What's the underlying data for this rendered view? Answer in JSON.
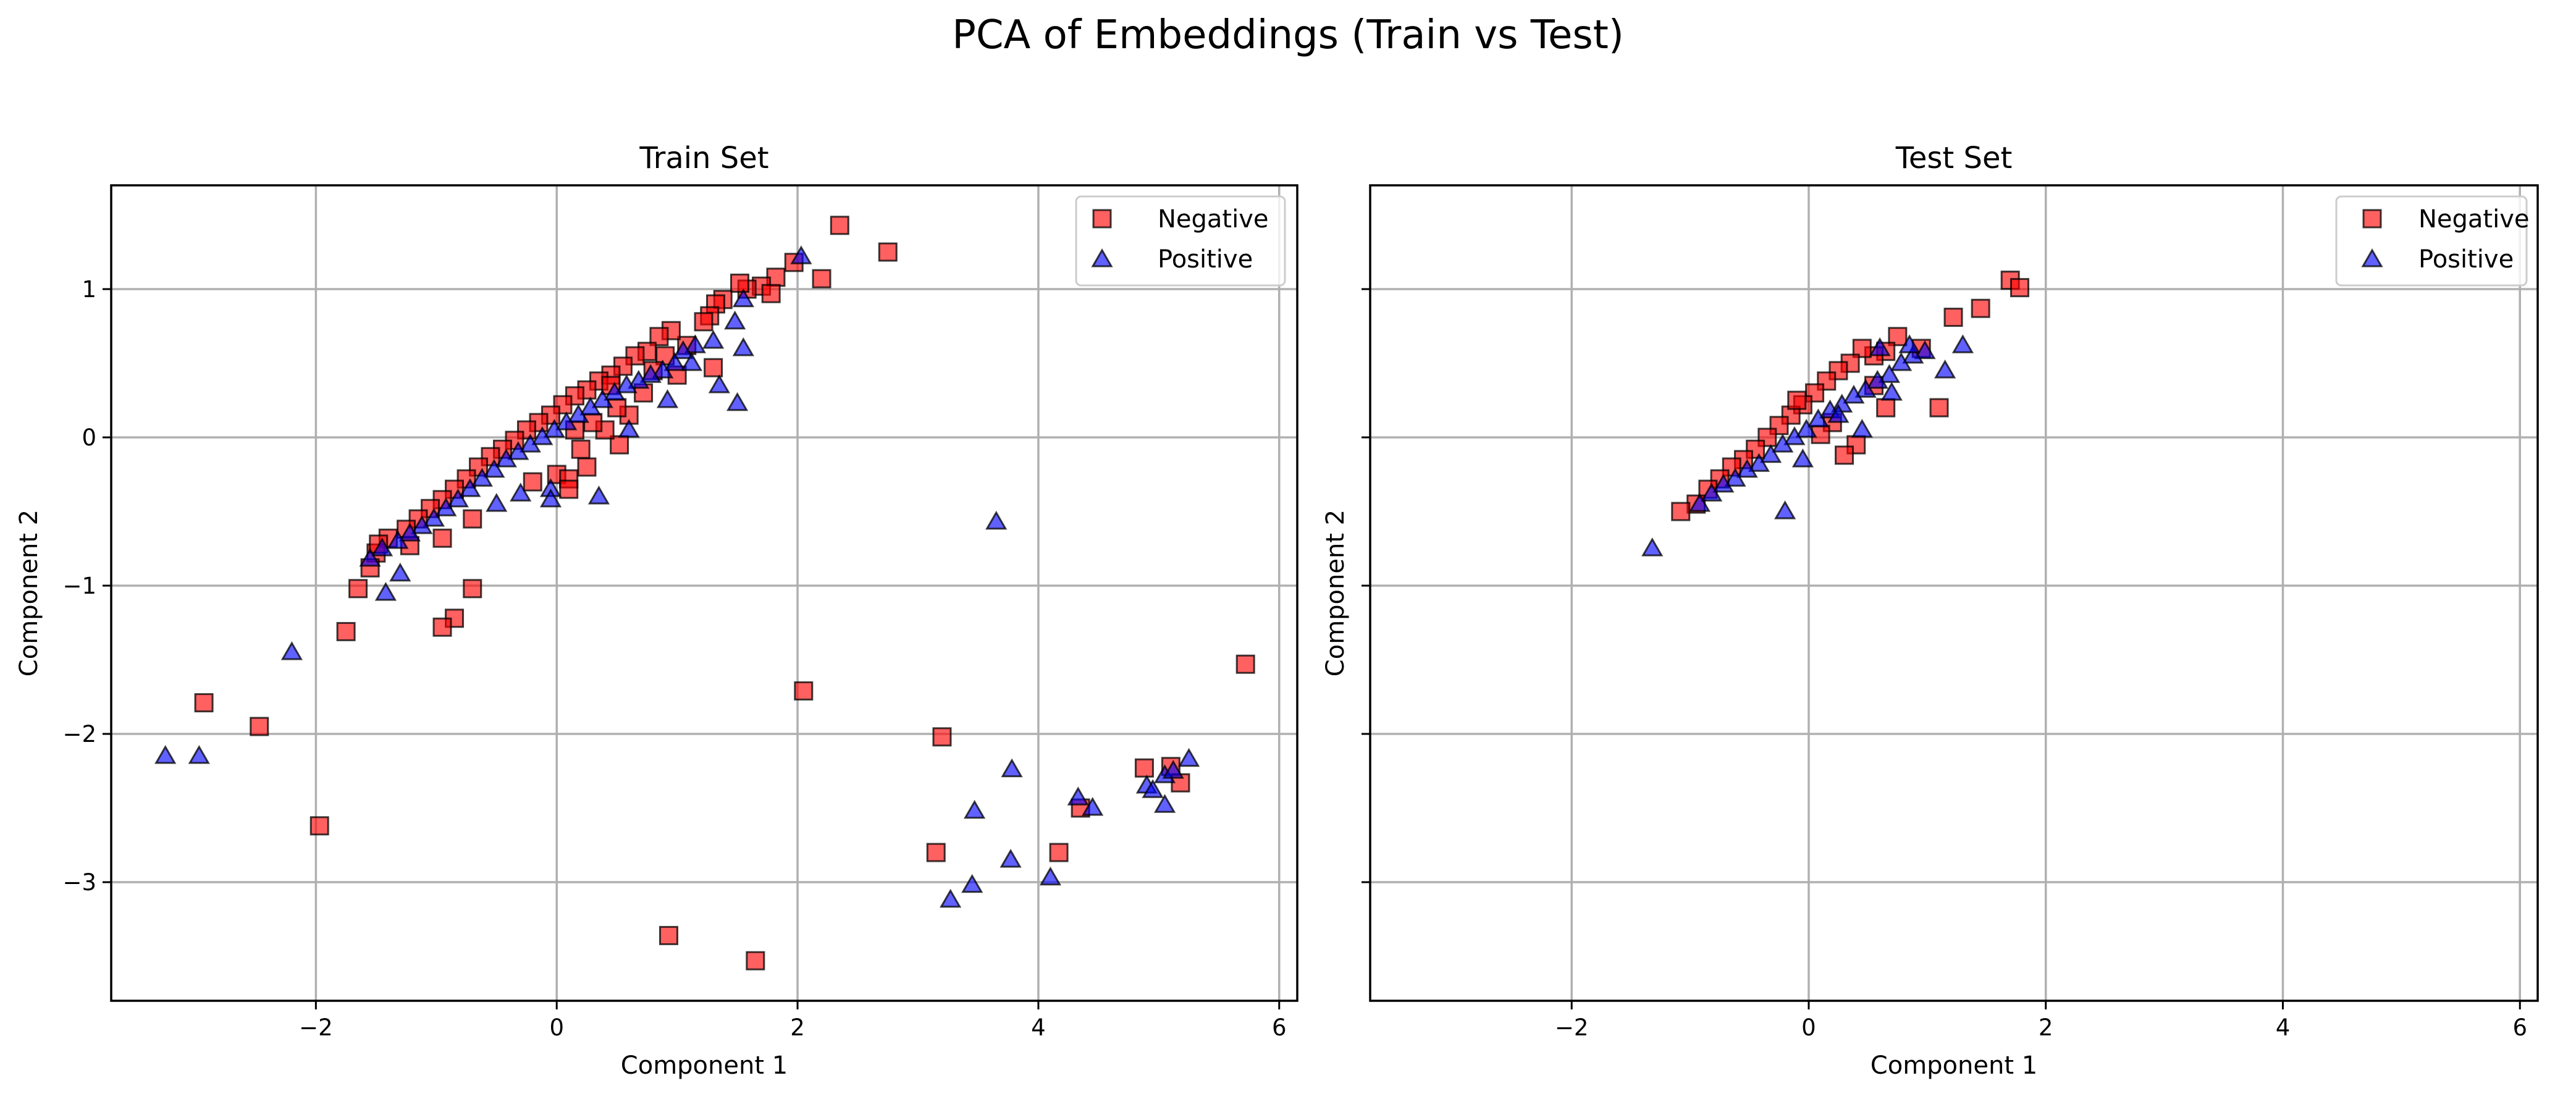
{
  "chart_data": {
    "title": "PCA of Embeddings (Train vs Test)",
    "type": "scatter",
    "sharey": true,
    "colors": {
      "Negative": "#ff0000",
      "Positive": "#0000ff"
    },
    "markers": {
      "Negative": "square",
      "Positive": "triangle"
    },
    "panels": [
      {
        "id": "train",
        "title": "Train Set",
        "xlabel": "Component 1",
        "ylabel": "Component 2",
        "xlim": [
          -3.7,
          6.15
        ],
        "ylim": [
          -3.8,
          1.7
        ],
        "xticks": [
          -2,
          0,
          2,
          4,
          6
        ],
        "yticks": [
          -3,
          -2,
          -1,
          0,
          1
        ],
        "tick_labels_x": [
          "−2",
          "0",
          "2",
          "4",
          "6"
        ],
        "tick_labels_y": [
          "−3",
          "−2",
          "−1",
          "0",
          "1"
        ],
        "grid": true,
        "legend": {
          "position": "top-right",
          "entries": [
            "Negative",
            "Positive"
          ]
        },
        "series": [
          {
            "name": "Negative",
            "points": [
              [
                2.35,
                1.43
              ],
              [
                2.75,
                1.25
              ],
              [
                2.2,
                1.07
              ],
              [
                1.97,
                1.18
              ],
              [
                1.82,
                1.08
              ],
              [
                1.7,
                1.02
              ],
              [
                1.58,
                1.0
              ],
              [
                1.78,
                0.97
              ],
              [
                1.52,
                1.04
              ],
              [
                1.38,
                0.93
              ],
              [
                1.32,
                0.9
              ],
              [
                1.27,
                0.82
              ],
              [
                1.22,
                0.78
              ],
              [
                1.08,
                0.62
              ],
              [
                0.95,
                0.72
              ],
              [
                0.85,
                0.68
              ],
              [
                0.9,
                0.55
              ],
              [
                1.3,
                0.47
              ],
              [
                0.75,
                0.58
              ],
              [
                0.65,
                0.55
              ],
              [
                0.55,
                0.48
              ],
              [
                0.45,
                0.42
              ],
              [
                0.35,
                0.38
              ],
              [
                0.25,
                0.32
              ],
              [
                0.15,
                0.28
              ],
              [
                0.05,
                0.22
              ],
              [
                -0.05,
                0.15
              ],
              [
                -0.15,
                0.1
              ],
              [
                -0.25,
                0.05
              ],
              [
                -0.35,
                -0.02
              ],
              [
                -0.45,
                -0.08
              ],
              [
                -0.55,
                -0.13
              ],
              [
                -0.65,
                -0.2
              ],
              [
                -0.75,
                -0.28
              ],
              [
                -0.85,
                -0.35
              ],
              [
                -0.95,
                -0.42
              ],
              [
                -1.05,
                -0.48
              ],
              [
                -1.15,
                -0.55
              ],
              [
                -1.25,
                -0.62
              ],
              [
                -1.4,
                -0.68
              ],
              [
                -1.5,
                -0.78
              ],
              [
                -1.55,
                -0.88
              ],
              [
                -1.65,
                -1.02
              ],
              [
                -1.48,
                -0.72
              ],
              [
                -1.22,
                -0.73
              ],
              [
                -0.95,
                -0.68
              ],
              [
                -0.7,
                -0.55
              ],
              [
                -0.7,
                -1.02
              ],
              [
                -0.85,
                -1.22
              ],
              [
                -0.95,
                -1.28
              ],
              [
                -1.75,
                -1.31
              ],
              [
                -2.93,
                -1.79
              ],
              [
                -2.47,
                -1.95
              ],
              [
                -1.97,
                -2.62
              ],
              [
                0.0,
                -0.25
              ],
              [
                0.1,
                -0.28
              ],
              [
                0.1,
                -0.35
              ],
              [
                0.25,
                -0.2
              ],
              [
                0.52,
                -0.05
              ],
              [
                0.6,
                0.15
              ],
              [
                0.4,
                0.05
              ],
              [
                0.2,
                -0.08
              ],
              [
                0.72,
                0.3
              ],
              [
                1.0,
                0.42
              ],
              [
                0.3,
                0.1
              ],
              [
                0.5,
                0.2
              ],
              [
                0.8,
                0.45
              ],
              [
                -0.2,
                -0.3
              ],
              [
                0.45,
                0.35
              ],
              [
                0.15,
                0.05
              ],
              [
                5.72,
                -1.53
              ],
              [
                2.05,
                -1.71
              ],
              [
                3.2,
                -2.02
              ],
              [
                3.15,
                -2.8
              ],
              [
                4.17,
                -2.8
              ],
              [
                4.35,
                -2.5
              ],
              [
                4.88,
                -2.23
              ],
              [
                5.1,
                -2.22
              ],
              [
                5.18,
                -2.33
              ],
              [
                0.93,
                -3.36
              ],
              [
                1.65,
                -3.53
              ]
            ]
          },
          {
            "name": "Positive",
            "points": [
              [
                2.03,
                1.22
              ],
              [
                1.55,
                0.93
              ],
              [
                1.48,
                0.78
              ],
              [
                1.55,
                0.6
              ],
              [
                1.3,
                0.65
              ],
              [
                1.15,
                0.62
              ],
              [
                1.05,
                0.58
              ],
              [
                0.98,
                0.5
              ],
              [
                0.88,
                0.45
              ],
              [
                0.78,
                0.42
              ],
              [
                0.68,
                0.38
              ],
              [
                0.58,
                0.35
              ],
              [
                0.48,
                0.3
              ],
              [
                0.38,
                0.25
              ],
              [
                0.28,
                0.2
              ],
              [
                0.18,
                0.15
              ],
              [
                0.08,
                0.1
              ],
              [
                -0.02,
                0.05
              ],
              [
                -0.12,
                0.0
              ],
              [
                -0.22,
                -0.05
              ],
              [
                -0.32,
                -0.1
              ],
              [
                -0.42,
                -0.15
              ],
              [
                -0.52,
                -0.22
              ],
              [
                -0.62,
                -0.28
              ],
              [
                -0.72,
                -0.35
              ],
              [
                -0.82,
                -0.42
              ],
              [
                -0.92,
                -0.48
              ],
              [
                -1.02,
                -0.55
              ],
              [
                -1.12,
                -0.6
              ],
              [
                -1.22,
                -0.65
              ],
              [
                -1.32,
                -0.7
              ],
              [
                -1.45,
                -0.75
              ],
              [
                -1.55,
                -0.82
              ],
              [
                -1.3,
                -0.92
              ],
              [
                -1.42,
                -1.05
              ],
              [
                -0.5,
                -0.45
              ],
              [
                -0.3,
                -0.38
              ],
              [
                0.35,
                -0.4
              ],
              [
                1.35,
                0.35
              ],
              [
                1.5,
                0.23
              ],
              [
                1.12,
                0.5
              ],
              [
                0.92,
                0.25
              ],
              [
                0.6,
                0.05
              ],
              [
                -0.05,
                -0.35
              ],
              [
                -0.05,
                -0.42
              ],
              [
                -2.2,
                -1.45
              ],
              [
                -3.25,
                -2.15
              ],
              [
                -2.97,
                -2.15
              ],
              [
                3.65,
                -0.57
              ],
              [
                3.78,
                -2.24
              ],
              [
                3.47,
                -2.52
              ],
              [
                3.27,
                -3.12
              ],
              [
                3.45,
                -3.02
              ],
              [
                3.77,
                -2.85
              ],
              [
                4.1,
                -2.97
              ],
              [
                4.33,
                -2.43
              ],
              [
                4.45,
                -2.5
              ],
              [
                4.9,
                -2.35
              ],
              [
                4.95,
                -2.38
              ],
              [
                5.05,
                -2.48
              ],
              [
                5.05,
                -2.28
              ],
              [
                5.12,
                -2.25
              ],
              [
                5.25,
                -2.17
              ]
            ]
          }
        ]
      },
      {
        "id": "test",
        "title": "Test Set",
        "xlabel": "Component 1",
        "ylabel": "Component 2",
        "xlim": [
          -3.7,
          6.15
        ],
        "ylim": [
          -3.8,
          1.7
        ],
        "xticks": [
          -2,
          0,
          2,
          4,
          6
        ],
        "yticks": [
          -3,
          -2,
          -1,
          0,
          1
        ],
        "tick_labels_x": [
          "−2",
          "0",
          "2",
          "4",
          "6"
        ],
        "tick_labels_y": [],
        "grid": true,
        "legend": {
          "position": "top-right",
          "entries": [
            "Negative",
            "Positive"
          ]
        },
        "series": [
          {
            "name": "Negative",
            "points": [
              [
                1.7,
                1.06
              ],
              [
                1.78,
                1.01
              ],
              [
                1.45,
                0.87
              ],
              [
                1.22,
                0.81
              ],
              [
                1.1,
                0.2
              ],
              [
                0.95,
                0.6
              ],
              [
                0.75,
                0.68
              ],
              [
                0.65,
                0.58
              ],
              [
                0.55,
                0.55
              ],
              [
                0.45,
                0.6
              ],
              [
                0.35,
                0.5
              ],
              [
                0.25,
                0.45
              ],
              [
                0.15,
                0.38
              ],
              [
                0.05,
                0.3
              ],
              [
                -0.05,
                0.22
              ],
              [
                -0.15,
                0.15
              ],
              [
                -0.25,
                0.08
              ],
              [
                -0.35,
                0.0
              ],
              [
                -0.45,
                -0.08
              ],
              [
                -0.55,
                -0.15
              ],
              [
                -0.65,
                -0.2
              ],
              [
                -0.75,
                -0.28
              ],
              [
                -0.85,
                -0.35
              ],
              [
                -0.95,
                -0.45
              ],
              [
                -1.08,
                -0.5
              ],
              [
                0.4,
                -0.05
              ],
              [
                0.2,
                0.1
              ],
              [
                0.55,
                0.35
              ],
              [
                0.3,
                -0.12
              ],
              [
                0.1,
                0.02
              ],
              [
                -0.1,
                0.25
              ],
              [
                0.65,
                0.2
              ]
            ]
          },
          {
            "name": "Positive",
            "points": [
              [
                1.3,
                0.62
              ],
              [
                1.15,
                0.45
              ],
              [
                0.98,
                0.58
              ],
              [
                0.88,
                0.55
              ],
              [
                0.78,
                0.5
              ],
              [
                0.68,
                0.42
              ],
              [
                0.58,
                0.38
              ],
              [
                0.48,
                0.32
              ],
              [
                0.38,
                0.28
              ],
              [
                0.28,
                0.22
              ],
              [
                0.18,
                0.18
              ],
              [
                0.08,
                0.12
              ],
              [
                -0.02,
                0.05
              ],
              [
                -0.12,
                0.0
              ],
              [
                -0.22,
                -0.05
              ],
              [
                -0.32,
                -0.12
              ],
              [
                -0.42,
                -0.18
              ],
              [
                -0.52,
                -0.22
              ],
              [
                -0.62,
                -0.28
              ],
              [
                -0.72,
                -0.32
              ],
              [
                -0.82,
                -0.38
              ],
              [
                -0.92,
                -0.45
              ],
              [
                -1.32,
                -0.75
              ],
              [
                -0.2,
                -0.5
              ],
              [
                0.7,
                0.3
              ],
              [
                0.45,
                0.05
              ],
              [
                -0.05,
                -0.15
              ],
              [
                0.25,
                0.15
              ],
              [
                0.6,
                0.6
              ],
              [
                0.85,
                0.62
              ]
            ]
          }
        ]
      }
    ]
  }
}
